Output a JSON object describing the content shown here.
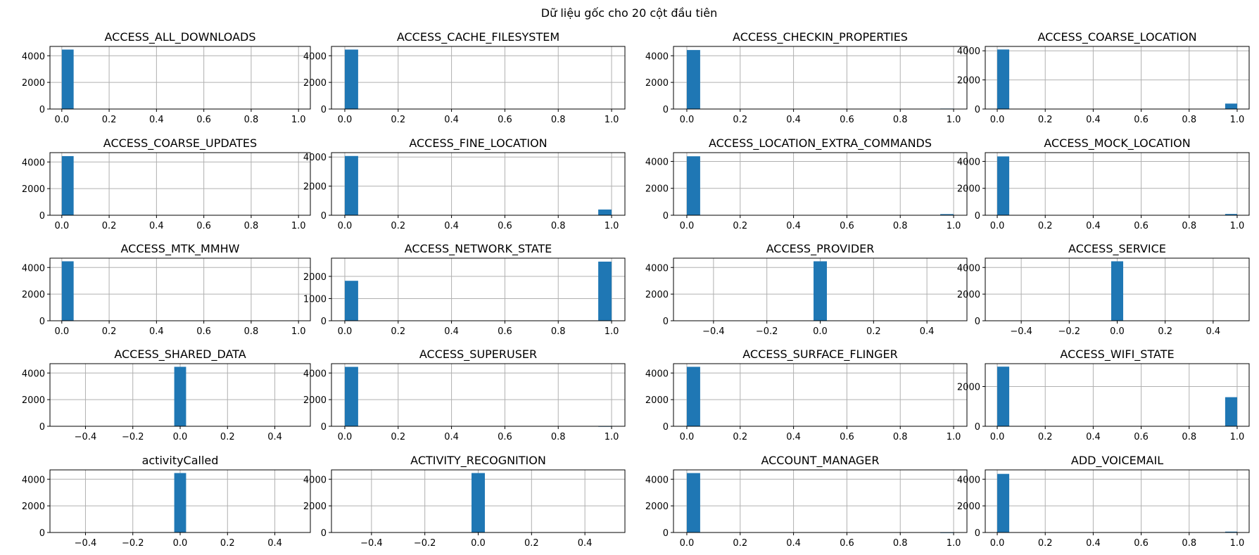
{
  "suptitle": "Dữ liệu gốc cho 20 cột đầu tiên",
  "colors": {
    "bar": "#1f77b4",
    "grid": "#b0b0b0",
    "axis": "#000000"
  },
  "chart_data": [
    {
      "type": "bar",
      "title": "ACCESS_ALL_DOWNLOADS",
      "xlim": [
        -0.05,
        1.05
      ],
      "ylim": [
        0,
        4700
      ],
      "xticks": [
        "0.0",
        "0.2",
        "0.4",
        "0.6",
        "0.8",
        "1.0"
      ],
      "yticks": [
        "0",
        "2000",
        "4000"
      ],
      "bars": [
        {
          "x0": 0.0,
          "x1": 0.05,
          "value": 4464
        }
      ],
      "grid": true
    },
    {
      "type": "bar",
      "title": "ACCESS_CACHE_FILESYSTEM",
      "xlim": [
        -0.05,
        1.05
      ],
      "ylim": [
        0,
        4700
      ],
      "xticks": [
        "0.0",
        "0.2",
        "0.4",
        "0.6",
        "0.8",
        "1.0"
      ],
      "yticks": [
        "0",
        "2000",
        "4000"
      ],
      "bars": [
        {
          "x0": 0.0,
          "x1": 0.05,
          "value": 4464
        }
      ],
      "grid": true
    },
    {
      "type": "bar",
      "title": "ACCESS_CHECKIN_PROPERTIES",
      "xlim": [
        -0.05,
        1.05
      ],
      "ylim": [
        0,
        4700
      ],
      "xticks": [
        "0.0",
        "0.2",
        "0.4",
        "0.6",
        "0.8",
        "1.0"
      ],
      "yticks": [
        "0",
        "2000",
        "4000"
      ],
      "bars": [
        {
          "x0": 0.0,
          "x1": 0.05,
          "value": 4430
        },
        {
          "x0": 0.95,
          "x1": 1.0,
          "value": 34
        }
      ],
      "grid": true
    },
    {
      "type": "bar",
      "title": "ACCESS_COARSE_LOCATION",
      "xlim": [
        -0.05,
        1.05
      ],
      "ylim": [
        0,
        4300
      ],
      "xticks": [
        "0.0",
        "0.2",
        "0.4",
        "0.6",
        "0.8",
        "1.0"
      ],
      "yticks": [
        "0",
        "2000",
        "4000"
      ],
      "bars": [
        {
          "x0": 0.0,
          "x1": 0.05,
          "value": 4090
        },
        {
          "x0": 0.95,
          "x1": 1.0,
          "value": 374
        }
      ],
      "grid": true
    },
    {
      "type": "bar",
      "title": "ACCESS_COARSE_UPDATES",
      "xlim": [
        -0.05,
        1.05
      ],
      "ylim": [
        0,
        4700
      ],
      "xticks": [
        "0.0",
        "0.2",
        "0.4",
        "0.6",
        "0.8",
        "1.0"
      ],
      "yticks": [
        "0",
        "2000",
        "4000"
      ],
      "bars": [
        {
          "x0": 0.0,
          "x1": 0.05,
          "value": 4440
        },
        {
          "x0": 0.95,
          "x1": 1.0,
          "value": 24
        }
      ],
      "grid": true
    },
    {
      "type": "bar",
      "title": "ACCESS_FINE_LOCATION",
      "xlim": [
        -0.05,
        1.05
      ],
      "ylim": [
        0,
        4300
      ],
      "xticks": [
        "0.0",
        "0.2",
        "0.4",
        "0.6",
        "0.8",
        "1.0"
      ],
      "yticks": [
        "0",
        "2000",
        "4000"
      ],
      "bars": [
        {
          "x0": 0.0,
          "x1": 0.05,
          "value": 4070
        },
        {
          "x0": 0.95,
          "x1": 1.0,
          "value": 394
        }
      ],
      "grid": true
    },
    {
      "type": "bar",
      "title": "ACCESS_LOCATION_EXTRA_COMMANDS",
      "xlim": [
        -0.05,
        1.05
      ],
      "ylim": [
        0,
        4650
      ],
      "xticks": [
        "0.0",
        "0.2",
        "0.4",
        "0.6",
        "0.8",
        "1.0"
      ],
      "yticks": [
        "0",
        "2000",
        "4000"
      ],
      "bars": [
        {
          "x0": 0.0,
          "x1": 0.05,
          "value": 4380
        },
        {
          "x0": 0.95,
          "x1": 1.0,
          "value": 84
        }
      ],
      "grid": true
    },
    {
      "type": "bar",
      "title": "ACCESS_MOCK_LOCATION",
      "xlim": [
        -0.05,
        1.05
      ],
      "ylim": [
        0,
        4650
      ],
      "xticks": [
        "0.0",
        "0.2",
        "0.4",
        "0.6",
        "0.8",
        "1.0"
      ],
      "yticks": [
        "0",
        "2000",
        "4000"
      ],
      "bars": [
        {
          "x0": 0.0,
          "x1": 0.05,
          "value": 4370
        },
        {
          "x0": 0.95,
          "x1": 1.0,
          "value": 94
        }
      ],
      "grid": true
    },
    {
      "type": "bar",
      "title": "ACCESS_MTK_MMHW",
      "xlim": [
        -0.05,
        1.05
      ],
      "ylim": [
        0,
        4700
      ],
      "xticks": [
        "0.0",
        "0.2",
        "0.4",
        "0.6",
        "0.8",
        "1.0"
      ],
      "yticks": [
        "0",
        "2000",
        "4000"
      ],
      "bars": [
        {
          "x0": 0.0,
          "x1": 0.05,
          "value": 4464
        }
      ],
      "grid": true
    },
    {
      "type": "bar",
      "title": "ACCESS_NETWORK_STATE",
      "xlim": [
        -0.05,
        1.05
      ],
      "ylim": [
        0,
        2820
      ],
      "xticks": [
        "0.0",
        "0.2",
        "0.4",
        "0.6",
        "0.8",
        "1.0"
      ],
      "yticks": [
        "0",
        "1000",
        "2000"
      ],
      "bars": [
        {
          "x0": 0.0,
          "x1": 0.05,
          "value": 1800
        },
        {
          "x0": 0.95,
          "x1": 1.0,
          "value": 2664
        }
      ],
      "grid": true
    },
    {
      "type": "bar",
      "title": "ACCESS_PROVIDER",
      "xlim": [
        -0.55,
        0.55
      ],
      "ylim": [
        0,
        4700
      ],
      "xticks": [
        "−0.4",
        "−0.2",
        "0.0",
        "0.2",
        "0.4"
      ],
      "yticks": [
        "0",
        "2000",
        "4000"
      ],
      "bars": [
        {
          "x0": -0.025,
          "x1": 0.025,
          "value": 4464
        }
      ],
      "grid": true
    },
    {
      "type": "bar",
      "title": "ACCESS_SERVICE",
      "xlim": [
        -0.55,
        0.55
      ],
      "ylim": [
        0,
        4700
      ],
      "xticks": [
        "−0.4",
        "−0.2",
        "0.0",
        "0.2",
        "0.4"
      ],
      "yticks": [
        "0",
        "2000",
        "4000"
      ],
      "bars": [
        {
          "x0": -0.025,
          "x1": 0.025,
          "value": 4464
        }
      ],
      "grid": true
    },
    {
      "type": "bar",
      "title": "ACCESS_SHARED_DATA",
      "xlim": [
        -0.55,
        0.55
      ],
      "ylim": [
        0,
        4700
      ],
      "xticks": [
        "−0.4",
        "−0.2",
        "0.0",
        "0.2",
        "0.4"
      ],
      "yticks": [
        "0",
        "2000",
        "4000"
      ],
      "bars": [
        {
          "x0": -0.025,
          "x1": 0.025,
          "value": 4464
        }
      ],
      "grid": true
    },
    {
      "type": "bar",
      "title": "ACCESS_SUPERUSER",
      "xlim": [
        -0.05,
        1.05
      ],
      "ylim": [
        0,
        4700
      ],
      "xticks": [
        "0.0",
        "0.2",
        "0.4",
        "0.6",
        "0.8",
        "1.0"
      ],
      "yticks": [
        "0",
        "2000",
        "4000"
      ],
      "bars": [
        {
          "x0": 0.0,
          "x1": 0.05,
          "value": 4460
        },
        {
          "x0": 0.95,
          "x1": 1.0,
          "value": 4
        }
      ],
      "grid": true
    },
    {
      "type": "bar",
      "title": "ACCESS_SURFACE_FLINGER",
      "xlim": [
        -0.05,
        1.05
      ],
      "ylim": [
        0,
        4700
      ],
      "xticks": [
        "0.0",
        "0.2",
        "0.4",
        "0.6",
        "0.8",
        "1.0"
      ],
      "yticks": [
        "0",
        "2000",
        "4000"
      ],
      "bars": [
        {
          "x0": 0.0,
          "x1": 0.05,
          "value": 4464
        }
      ],
      "grid": true
    },
    {
      "type": "bar",
      "title": "ACCESS_WIFI_STATE",
      "xlim": [
        -0.05,
        1.05
      ],
      "ylim": [
        0,
        3150
      ],
      "xticks": [
        "0.0",
        "0.2",
        "0.4",
        "0.6",
        "0.8",
        "1.0"
      ],
      "yticks": [
        "0",
        "2000"
      ],
      "bars": [
        {
          "x0": 0.0,
          "x1": 0.05,
          "value": 3000
        },
        {
          "x0": 0.95,
          "x1": 1.0,
          "value": 1464
        }
      ],
      "grid": true
    },
    {
      "type": "bar",
      "title": "activityCalled",
      "xlim": [
        -0.55,
        0.55
      ],
      "ylim": [
        0,
        4700
      ],
      "xticks": [
        "−0.4",
        "−0.2",
        "0.0",
        "0.2",
        "0.4"
      ],
      "yticks": [
        "0",
        "2000",
        "4000"
      ],
      "bars": [
        {
          "x0": -0.025,
          "x1": 0.025,
          "value": 4464
        }
      ],
      "grid": true
    },
    {
      "type": "bar",
      "title": "ACTIVITY_RECOGNITION",
      "xlim": [
        -0.55,
        0.55
      ],
      "ylim": [
        0,
        4700
      ],
      "xticks": [
        "−0.4",
        "−0.2",
        "0.0",
        "0.2",
        "0.4"
      ],
      "yticks": [
        "0",
        "2000",
        "4000"
      ],
      "bars": [
        {
          "x0": -0.025,
          "x1": 0.025,
          "value": 4464
        }
      ],
      "grid": true
    },
    {
      "type": "bar",
      "title": "ACCOUNT_MANAGER",
      "xlim": [
        -0.05,
        1.05
      ],
      "ylim": [
        0,
        4700
      ],
      "xticks": [
        "0.0",
        "0.2",
        "0.4",
        "0.6",
        "0.8",
        "1.0"
      ],
      "yticks": [
        "0",
        "2000",
        "4000"
      ],
      "bars": [
        {
          "x0": 0.0,
          "x1": 0.05,
          "value": 4462
        },
        {
          "x0": 0.95,
          "x1": 1.0,
          "value": 2
        }
      ],
      "grid": true
    },
    {
      "type": "bar",
      "title": "ADD_VOICEMAIL",
      "xlim": [
        -0.05,
        1.05
      ],
      "ylim": [
        0,
        4700
      ],
      "xticks": [
        "0.0",
        "0.2",
        "0.4",
        "0.6",
        "0.8",
        "1.0"
      ],
      "yticks": [
        "0",
        "2000",
        "4000"
      ],
      "bars": [
        {
          "x0": 0.0,
          "x1": 0.05,
          "value": 4400
        },
        {
          "x0": 0.95,
          "x1": 1.0,
          "value": 64
        }
      ],
      "grid": true
    }
  ]
}
